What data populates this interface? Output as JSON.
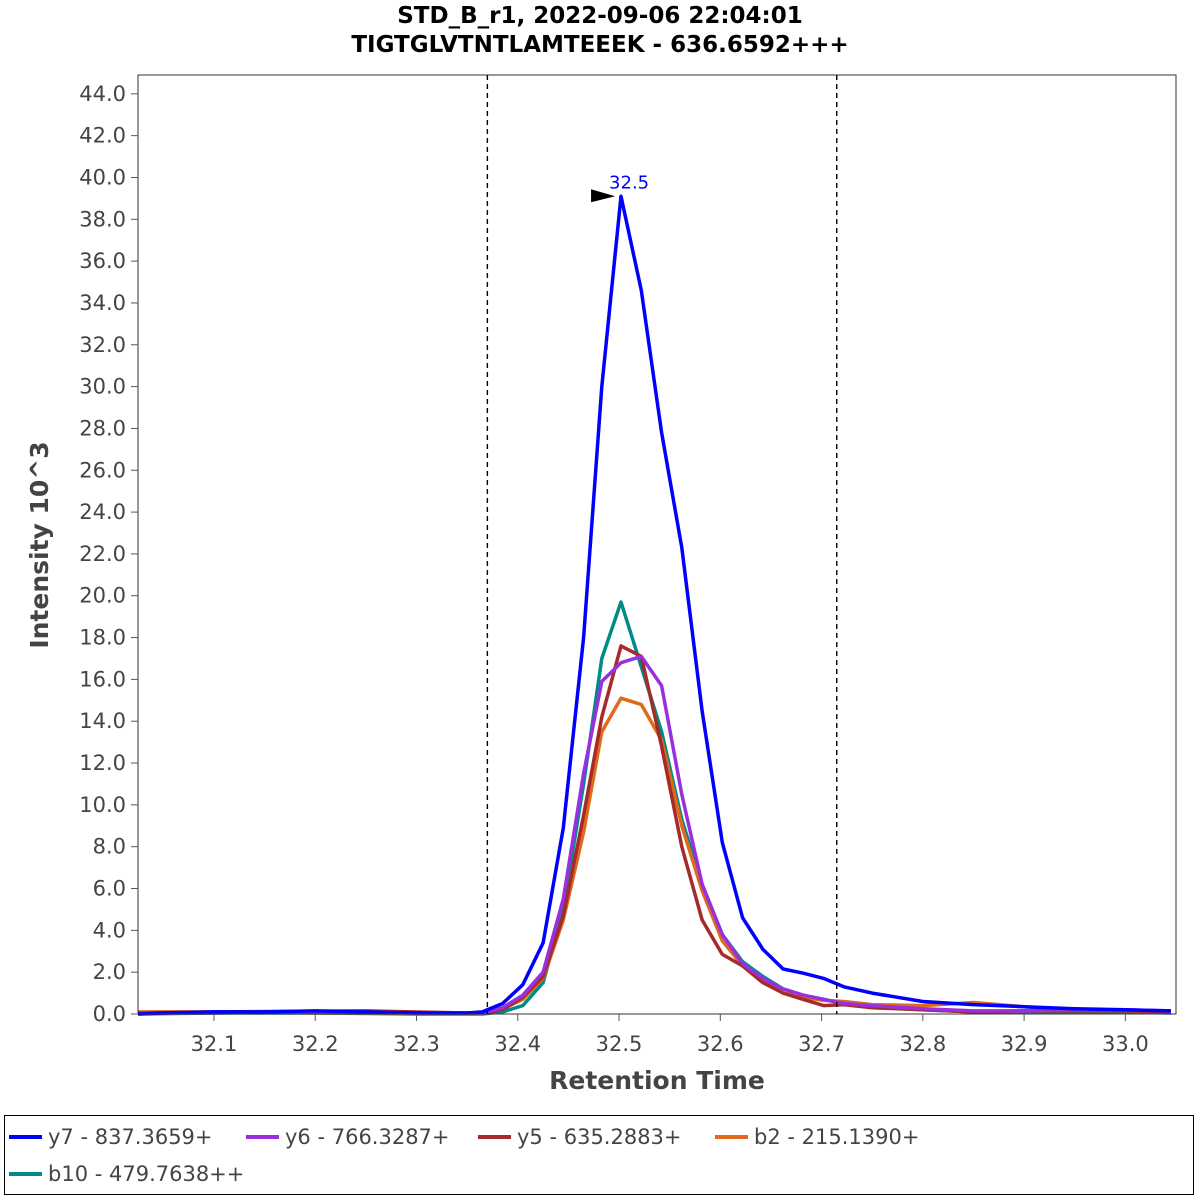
{
  "chart_data": {
    "type": "line",
    "title": [
      "STD_B_r1, 2022-09-06 22:04:01",
      "TIGTGLVTNTLAMTEEEK - 636.6592+++"
    ],
    "xlabel": "Retention Time",
    "ylabel": "Intensity 10^3",
    "xlim": [
      32.025,
      33.05
    ],
    "ylim": [
      0,
      44.9
    ],
    "xticks": [
      32.1,
      32.2,
      32.3,
      32.4,
      32.5,
      32.6,
      32.7,
      32.8,
      32.9,
      33.0
    ],
    "xtick_labels": [
      "32.1",
      "32.2",
      "32.3",
      "32.4",
      "32.5",
      "32.6",
      "32.7",
      "32.8",
      "32.9",
      "33.0"
    ],
    "yticks": [
      0,
      2,
      4,
      6,
      8,
      10,
      12,
      14,
      16,
      18,
      20,
      22,
      24,
      26,
      28,
      30,
      32,
      34,
      36,
      38,
      40,
      42,
      44
    ],
    "ytick_labels": [
      "0.0",
      "2.0",
      "4.0",
      "6.0",
      "8.0",
      "10.0",
      "12.0",
      "14.0",
      "16.0",
      "18.0",
      "20.0",
      "22.0",
      "24.0",
      "26.0",
      "28.0",
      "30.0",
      "32.0",
      "34.0",
      "36.0",
      "38.0",
      "40.0",
      "42.0",
      "44.0"
    ],
    "grid": false,
    "legend_position": "bottom",
    "integration_bounds": [
      32.37,
      32.715
    ],
    "peak_annotation": {
      "x": 32.502,
      "y": 39.1,
      "label": "32.5"
    },
    "series": [
      {
        "name": "y7 - 837.3659+",
        "color": "#0000ff",
        "x": [
          32.025,
          32.05,
          32.1,
          32.15,
          32.2,
          32.25,
          32.3,
          32.35,
          32.365,
          32.385,
          32.405,
          32.425,
          32.445,
          32.465,
          32.483,
          32.502,
          32.522,
          32.542,
          32.562,
          32.582,
          32.602,
          32.622,
          32.642,
          32.662,
          32.682,
          32.702,
          32.722,
          32.75,
          32.8,
          32.85,
          32.9,
          32.95,
          33.0,
          33.045
        ],
        "y": [
          0.0,
          0.05,
          0.1,
          0.1,
          0.15,
          0.1,
          0.05,
          0.05,
          0.1,
          0.5,
          1.4,
          3.4,
          8.9,
          18.0,
          30.0,
          39.1,
          34.6,
          27.8,
          22.3,
          14.5,
          8.2,
          4.6,
          3.1,
          2.15,
          1.95,
          1.7,
          1.3,
          1.0,
          0.6,
          0.45,
          0.35,
          0.25,
          0.2,
          0.15
        ]
      },
      {
        "name": "y6 - 766.3287+",
        "color": "#9a2fe0",
        "x": [
          32.025,
          32.1,
          32.2,
          32.3,
          32.365,
          32.385,
          32.405,
          32.425,
          32.445,
          32.465,
          32.483,
          32.502,
          32.522,
          32.542,
          32.562,
          32.582,
          32.602,
          32.622,
          32.642,
          32.662,
          32.682,
          32.702,
          32.722,
          32.75,
          32.8,
          32.85,
          32.9,
          32.95,
          33.0,
          33.045
        ],
        "y": [
          0.05,
          0.05,
          0.1,
          0.05,
          0.05,
          0.3,
          0.9,
          2.0,
          5.5,
          11.5,
          15.9,
          16.8,
          17.1,
          15.7,
          10.5,
          6.2,
          3.8,
          2.4,
          1.7,
          1.2,
          0.9,
          0.7,
          0.5,
          0.4,
          0.25,
          0.15,
          0.15,
          0.2,
          0.2,
          0.15
        ]
      },
      {
        "name": "y5 - 635.2883+",
        "color": "#a52a2a",
        "x": [
          32.025,
          32.1,
          32.25,
          32.35,
          32.365,
          32.385,
          32.405,
          32.425,
          32.445,
          32.465,
          32.483,
          32.502,
          32.522,
          32.542,
          32.562,
          32.582,
          32.602,
          32.622,
          32.642,
          32.662,
          32.682,
          32.702,
          32.722,
          32.75,
          32.8,
          32.85,
          32.9,
          32.95,
          33.0,
          33.045
        ],
        "y": [
          0.05,
          0.1,
          0.15,
          0.05,
          0.05,
          0.2,
          0.8,
          1.8,
          4.7,
          9.5,
          14.2,
          17.6,
          17.1,
          12.8,
          8.0,
          4.5,
          2.85,
          2.3,
          1.5,
          1.0,
          0.7,
          0.4,
          0.45,
          0.3,
          0.2,
          0.1,
          0.15,
          0.15,
          0.15,
          0.1
        ]
      },
      {
        "name": "b2 - 215.1390+",
        "color": "#e06a1a",
        "x": [
          32.025,
          32.1,
          32.2,
          32.3,
          32.365,
          32.385,
          32.405,
          32.425,
          32.445,
          32.465,
          32.483,
          32.502,
          32.522,
          32.542,
          32.562,
          32.582,
          32.602,
          32.622,
          32.642,
          32.662,
          32.682,
          32.702,
          32.722,
          32.75,
          32.8,
          32.85,
          32.9,
          32.95,
          33.0,
          33.045
        ],
        "y": [
          0.1,
          0.1,
          0.05,
          0.05,
          0.05,
          0.25,
          0.7,
          1.7,
          4.5,
          8.7,
          13.5,
          15.1,
          14.8,
          13.1,
          9.0,
          5.9,
          3.5,
          2.3,
          1.6,
          1.0,
          0.8,
          0.65,
          0.6,
          0.45,
          0.4,
          0.55,
          0.35,
          0.2,
          0.15,
          0.1
        ]
      },
      {
        "name": "b10 - 479.7638++",
        "color": "#008b8b",
        "x": [
          32.025,
          32.1,
          32.2,
          32.3,
          32.365,
          32.385,
          32.405,
          32.425,
          32.445,
          32.465,
          32.483,
          32.502,
          32.522,
          32.542,
          32.562,
          32.582,
          32.602,
          32.622,
          32.642,
          32.662,
          32.682,
          32.702,
          32.722,
          32.75,
          32.8,
          32.85,
          32.9,
          32.95,
          33.0,
          33.045
        ],
        "y": [
          0.0,
          0.05,
          0.05,
          0.0,
          0.0,
          0.1,
          0.4,
          1.5,
          5.0,
          11.0,
          17.0,
          19.7,
          16.6,
          13.5,
          9.3,
          6.2,
          3.8,
          2.5,
          1.8,
          1.2,
          0.9,
          0.7,
          0.5,
          0.35,
          0.2,
          0.1,
          0.1,
          0.1,
          0.1,
          0.05
        ]
      }
    ]
  }
}
